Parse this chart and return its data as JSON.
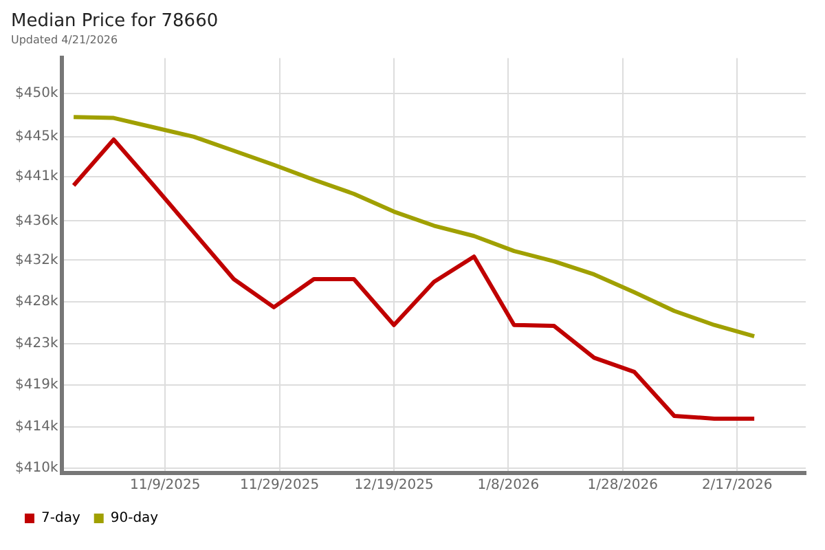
{
  "chart_data": {
    "type": "line",
    "title": "Median Price for 78660",
    "subtitle": "Updated 4/21/2026",
    "x": [
      "2025-10-24",
      "2025-10-31",
      "2025-11-07",
      "2025-11-14",
      "2025-11-21",
      "2025-11-28",
      "2025-12-05",
      "2025-12-12",
      "2025-12-19",
      "2025-12-26",
      "2026-01-02",
      "2026-01-09",
      "2026-01-16",
      "2026-01-23",
      "2026-01-30",
      "2026-02-06",
      "2026-02-13",
      "2026-02-20"
    ],
    "series": [
      {
        "name": "7-day",
        "color": "#c00000",
        "values": [
          440200,
          445100,
          440200,
          435200,
          430200,
          427200,
          430200,
          430200,
          425300,
          429900,
          432600,
          425300,
          425200,
          421800,
          420300,
          415600,
          415300,
          415300
        ]
      },
      {
        "name": "90-day",
        "color": "#a0a000",
        "values": [
          447500,
          447400,
          446400,
          445400,
          443900,
          442400,
          440800,
          439300,
          437400,
          435900,
          434800,
          433200,
          432100,
          430700,
          428800,
          426800,
          425300,
          424100
        ]
      }
    ],
    "xlim": [
      "2025-10-22",
      "2026-03-01"
    ],
    "xticks": [
      {
        "value": "2025-11-09",
        "label": "11/9/2025"
      },
      {
        "value": "2025-11-29",
        "label": "11/29/2025"
      },
      {
        "value": "2025-12-19",
        "label": "12/19/2025"
      },
      {
        "value": "2026-01-08",
        "label": "1/8/2026"
      },
      {
        "value": "2026-01-28",
        "label": "1/28/2026"
      },
      {
        "value": "2026-02-17",
        "label": "2/17/2026"
      }
    ],
    "ylim": [
      409500,
      453800
    ],
    "yticks": [
      {
        "value": 410000,
        "label": "$410k"
      },
      {
        "value": 414444,
        "label": "$414k"
      },
      {
        "value": 418889,
        "label": "$419k"
      },
      {
        "value": 423333,
        "label": "$423k"
      },
      {
        "value": 427778,
        "label": "$428k"
      },
      {
        "value": 432222,
        "label": "$432k"
      },
      {
        "value": 436400,
        "label": "$436k"
      },
      {
        "value": 441111,
        "label": "$441k"
      },
      {
        "value": 445400,
        "label": "$445k"
      },
      {
        "value": 450000,
        "label": "$450k"
      }
    ],
    "grid": true,
    "legend": "bottom left",
    "marker": "none",
    "line_style": "solid"
  }
}
